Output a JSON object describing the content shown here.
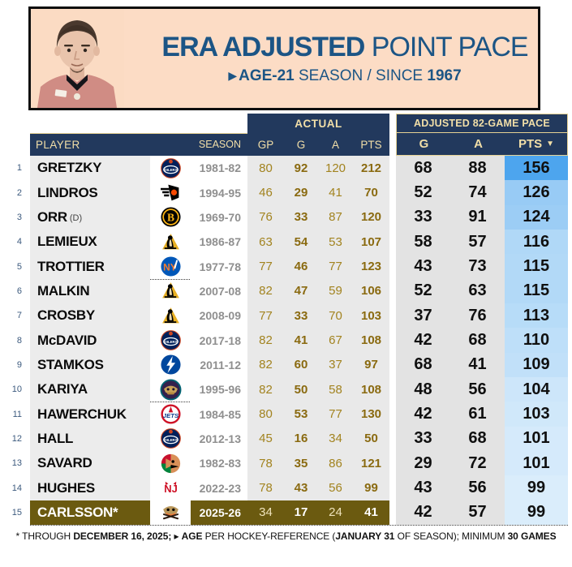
{
  "header": {
    "title_strong": "ERA ADJUSTED",
    "title_rest": " POINT PACE",
    "subtitle_arrow": "▶",
    "subtitle_strong": "AGE-21",
    "subtitle_mid": " SEASON / SINCE ",
    "subtitle_year": "1967"
  },
  "colors": {
    "header_bg": "#fcdcc5",
    "title_navy": "#1c5585",
    "table_navy": "#22395d",
    "cream_text": "#f2dfa8",
    "cream_border": "#e6d294",
    "player_col_gray": "#ececec",
    "actual_gray": "#e9e9e9",
    "adjusted_gray": "#e3e3e3",
    "highlight_olive": "#6b5a10",
    "stat_gold": "#a2831f",
    "stat_gold_bold": "#8a6a10",
    "pts_blue_max": "#4da5ee",
    "pts_blue_min": "#dceefb"
  },
  "table_head": {
    "actual_group": "ACTUAL",
    "adjusted_group": "ADJUSTED 82-GAME PACE",
    "player": "PLAYER",
    "season": "SEASON",
    "gp": "GP",
    "g": "G",
    "a": "A",
    "pts": "PTS",
    "adj_g": "G",
    "adj_a": "A",
    "adj_pts": "PTS",
    "sort_arrow": "▼"
  },
  "chart_data": {
    "type": "table",
    "title": "ERA ADJUSTED POINT PACE — AGE-21 SEASON / SINCE 1967",
    "columns": [
      "RANK",
      "PLAYER",
      "TEAM",
      "SEASON",
      "GP",
      "G",
      "A",
      "PTS",
      "ADJ G",
      "ADJ A",
      "ADJ PTS"
    ],
    "rows": [
      {
        "rank": 1,
        "player": "GRETZKY",
        "team": "oilers",
        "season": "1981-82",
        "gp": 80,
        "g": 92,
        "a": 120,
        "pts": 212,
        "adj_g": 68,
        "adj_a": 88,
        "adj_pts": 156,
        "pts_color": "#4da5ee"
      },
      {
        "rank": 2,
        "player": "LINDROS",
        "team": "flyers",
        "season": "1994-95",
        "gp": 46,
        "g": 29,
        "a": 41,
        "pts": 70,
        "adj_g": 52,
        "adj_a": 74,
        "adj_pts": 126,
        "pts_color": "#98cbf5"
      },
      {
        "rank": 3,
        "player": "ORR",
        "suffix": "(D)",
        "team": "bruins",
        "season": "1969-70",
        "gp": 76,
        "g": 33,
        "a": 87,
        "pts": 120,
        "adj_g": 33,
        "adj_a": 91,
        "adj_pts": 124,
        "pts_color": "#9ccdf5"
      },
      {
        "rank": 4,
        "player": "LEMIEUX",
        "team": "penguins",
        "season": "1986-87",
        "gp": 63,
        "g": 54,
        "a": 53,
        "pts": 107,
        "adj_g": 58,
        "adj_a": 57,
        "adj_pts": 116,
        "pts_color": "#b0d8f7"
      },
      {
        "rank": 5,
        "player": "TROTTIER",
        "team": "islanders",
        "season": "1977-78",
        "gp": 77,
        "g": 46,
        "a": 77,
        "pts": 123,
        "adj_g": 43,
        "adj_a": 73,
        "adj_pts": 115,
        "pts_color": "#b2d9f7",
        "separator_after": true
      },
      {
        "rank": 6,
        "player": "MALKIN",
        "team": "penguins",
        "season": "2007-08",
        "gp": 82,
        "g": 47,
        "a": 59,
        "pts": 106,
        "adj_g": 52,
        "adj_a": 63,
        "adj_pts": 115,
        "pts_color": "#b2d9f7"
      },
      {
        "rank": 7,
        "player": "CROSBY",
        "team": "penguins",
        "season": "2008-09",
        "gp": 77,
        "g": 33,
        "a": 70,
        "pts": 103,
        "adj_g": 37,
        "adj_a": 76,
        "adj_pts": 113,
        "pts_color": "#b7dcf8"
      },
      {
        "rank": 8,
        "player": "McDAVID",
        "team": "oilers",
        "season": "2017-18",
        "gp": 82,
        "g": 41,
        "a": 67,
        "pts": 108,
        "adj_g": 42,
        "adj_a": 68,
        "adj_pts": 110,
        "pts_color": "#bedff9"
      },
      {
        "rank": 9,
        "player": "STAMKOS",
        "team": "lightning",
        "season": "2011-12",
        "gp": 82,
        "g": 60,
        "a": 37,
        "pts": 97,
        "adj_g": 68,
        "adj_a": 41,
        "adj_pts": 109,
        "pts_color": "#c1e0f9"
      },
      {
        "rank": 10,
        "player": "KARIYA",
        "team": "mightyducks",
        "season": "1995-96",
        "gp": 82,
        "g": 50,
        "a": 58,
        "pts": 108,
        "adj_g": 48,
        "adj_a": 56,
        "adj_pts": 104,
        "pts_color": "#cde6fa",
        "separator_after": true
      },
      {
        "rank": 11,
        "player": "HAWERCHUK",
        "team": "jets",
        "season": "1984-85",
        "gp": 80,
        "g": 53,
        "a": 77,
        "pts": 130,
        "adj_g": 42,
        "adj_a": 61,
        "adj_pts": 103,
        "pts_color": "#d0e8fa"
      },
      {
        "rank": 12,
        "player": "HALL",
        "team": "oilers",
        "season": "2012-13",
        "gp": 45,
        "g": 16,
        "a": 34,
        "pts": 50,
        "adj_g": 33,
        "adj_a": 68,
        "adj_pts": 101,
        "pts_color": "#d5eafb"
      },
      {
        "rank": 13,
        "player": "SAVARD",
        "team": "blackhawks",
        "season": "1982-83",
        "gp": 78,
        "g": 35,
        "a": 86,
        "pts": 121,
        "adj_g": 29,
        "adj_a": 72,
        "adj_pts": 101,
        "pts_color": "#d5eafb"
      },
      {
        "rank": 14,
        "player": "HUGHES",
        "team": "devils",
        "season": "2022-23",
        "gp": 78,
        "g": 43,
        "a": 56,
        "pts": 99,
        "adj_g": 43,
        "adj_a": 56,
        "adj_pts": 99,
        "pts_color": "#daedfb"
      },
      {
        "rank": 15,
        "player": "CARLSSON*",
        "team": "ducks",
        "season": "2025-26",
        "gp": 34,
        "g": 17,
        "a": 24,
        "pts": 41,
        "adj_g": 42,
        "adj_a": 57,
        "adj_pts": 99,
        "pts_color": "#daedfb",
        "highlight": true,
        "separator_after": true
      }
    ]
  },
  "footnote": {
    "parts": [
      {
        "text": "* THROUGH ",
        "bold": false
      },
      {
        "text": "DECEMBER 16, 2025;",
        "bold": true
      },
      {
        "text": " ▸ ",
        "bold": false
      },
      {
        "text": "AGE",
        "bold": true
      },
      {
        "text": " PER HOCKEY-REFERENCE (",
        "bold": false
      },
      {
        "text": "JANUARY 31",
        "bold": true
      },
      {
        "text": " OF SEASON); MINIMUM ",
        "bold": false
      },
      {
        "text": "30 GAMES",
        "bold": true
      }
    ]
  }
}
